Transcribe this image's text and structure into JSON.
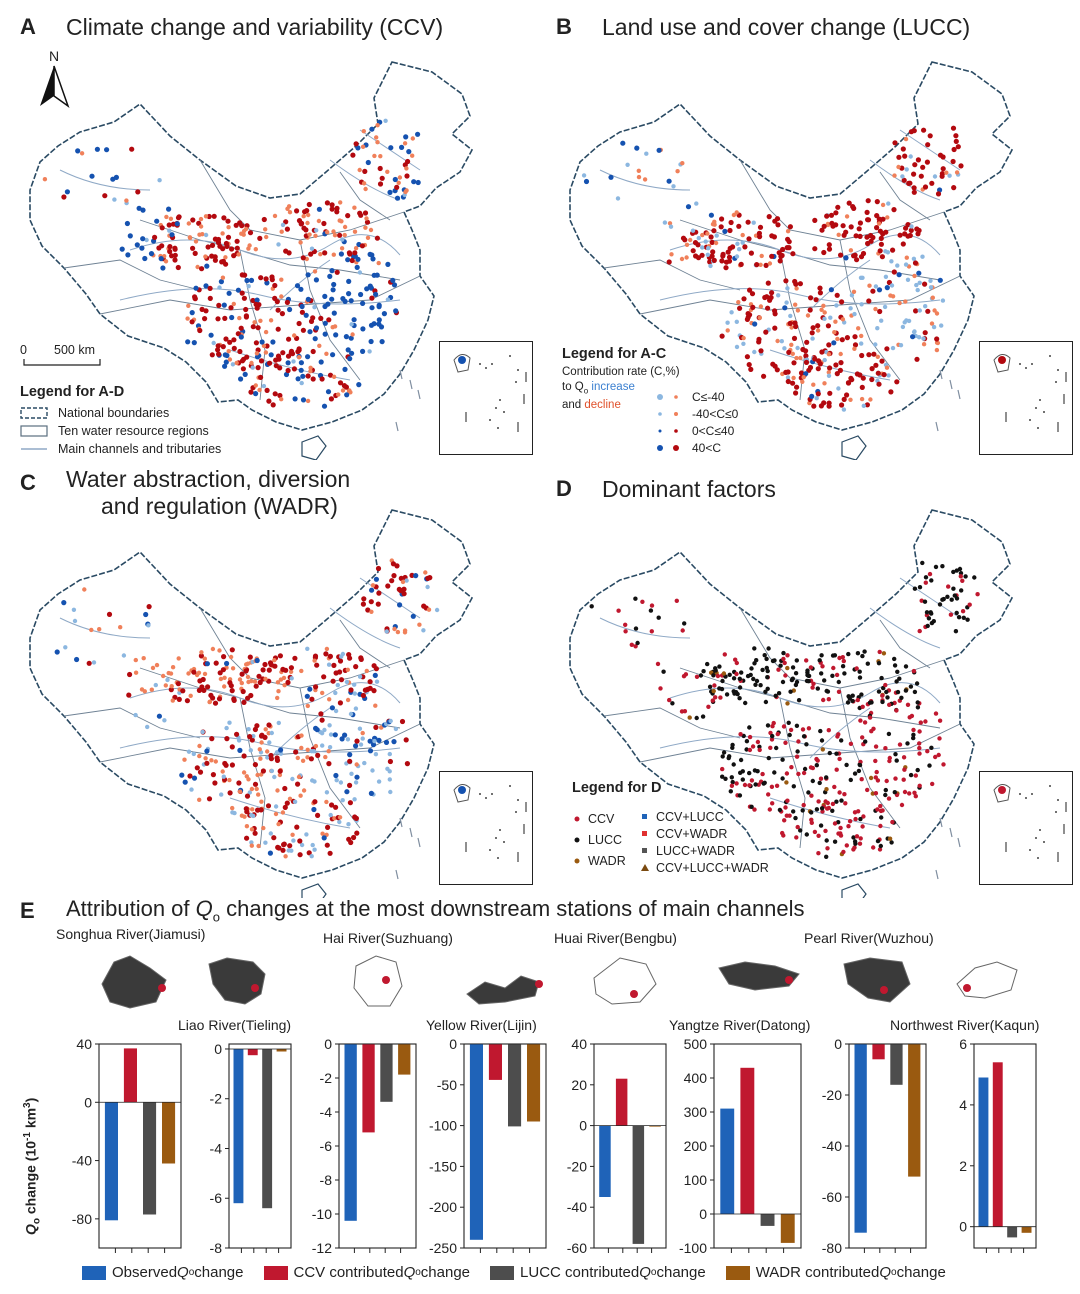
{
  "panels": {
    "A": {
      "letter": "A",
      "title": "Climate change and variability (CCV)"
    },
    "B": {
      "letter": "B",
      "title": "Land use and cover change (LUCC)"
    },
    "C": {
      "letter": "C",
      "title_line1": "Water abstraction, diversion",
      "title_line2": "and regulation (WADR)"
    },
    "D": {
      "letter": "D",
      "title": "Dominant factors"
    },
    "E": {
      "letter": "E",
      "title_pre": "Attribution of ",
      "title_q": "Q",
      "title_sub": "o",
      "title_post": " changes at the most downstream stations of main channels"
    }
  },
  "north": "N",
  "scale": {
    "zero": "0",
    "dist": "500 km"
  },
  "legend_AD": {
    "title": "Legend for A-D",
    "items": [
      "National boundaries",
      "Ten water resource regions",
      "Main channels and tributaries"
    ]
  },
  "legend_AC": {
    "title": "Legend for A-C",
    "line1": "Contribution rate (C,%)",
    "line2_pre": "to Q",
    "line2_sub": "o",
    "line2_inc": " increase",
    "line3_pre": "and ",
    "line3_dec": "decline",
    "items": [
      "C≤-40",
      "-40<C≤0",
      "0<C≤40",
      "40<C"
    ]
  },
  "legend_D": {
    "title": "Legend for D",
    "left": [
      "CCV",
      "LUCC",
      "WADR"
    ],
    "right": [
      "CCV+LUCC",
      "CCV+WADR",
      "LUCC+WADR",
      "CCV+LUCC+WADR"
    ]
  },
  "colors": {
    "observed": "#1f63b8",
    "ccv": "#c0182f",
    "lucc": "#4d4d4d",
    "wadr": "#9a5a10",
    "inc_strong": "#1552b0",
    "inc_weak": "#8cb7e0",
    "dec_weak": "#f0805a",
    "dec_strong": "#b3090f",
    "border": "#2a4a63",
    "river": "#8fa9c6"
  },
  "y_axis_label_pre": "Q",
  "y_axis_label_sub": "o",
  "y_axis_label_post": " change (10",
  "y_axis_label_exp": "-1",
  "y_axis_label_end": " km",
  "y_axis_label_exp2": "3",
  "y_axis_label_close": ")",
  "legend_E": [
    {
      "pre": "Observed ",
      "post": " change"
    },
    {
      "pre": "CCV contributed ",
      "post": " change"
    },
    {
      "pre": "LUCC contributed ",
      "post": " change"
    },
    {
      "pre": "WADR contributed ",
      "post": " change"
    }
  ],
  "chart_data": [
    {
      "type": "bar",
      "title": "Songhua River(Jiamusi)",
      "categories": [
        "Observed",
        "CCV",
        "LUCC",
        "WADR"
      ],
      "values": [
        -81,
        37,
        -77,
        -42
      ],
      "ylim": [
        -100,
        40
      ],
      "ticks": [
        40,
        0,
        -40,
        -80
      ]
    },
    {
      "type": "bar",
      "title": "Liao River(Tieling)",
      "categories": [
        "Observed",
        "CCV",
        "LUCC",
        "WADR"
      ],
      "values": [
        -6.2,
        -0.25,
        -6.4,
        -0.1
      ],
      "ylim": [
        -8,
        0.2
      ],
      "ticks": [
        0,
        -2,
        -4,
        -6,
        -8
      ]
    },
    {
      "type": "bar",
      "title": "Hai River(Suzhuang)",
      "categories": [
        "Observed",
        "CCV",
        "LUCC",
        "WADR"
      ],
      "values": [
        -10.4,
        -5.2,
        -3.4,
        -1.8
      ],
      "ylim": [
        -12,
        0
      ],
      "ticks": [
        0,
        -2,
        -4,
        -6,
        -8,
        -10,
        -12
      ]
    },
    {
      "type": "bar",
      "title": "Yellow River(Lijin)",
      "categories": [
        "Observed",
        "CCV",
        "LUCC",
        "WADR"
      ],
      "values": [
        -240,
        -44,
        -101,
        -95
      ],
      "ylim": [
        -250,
        0
      ],
      "ticks": [
        0,
        -50,
        -100,
        -150,
        -200,
        -250
      ]
    },
    {
      "type": "bar",
      "title": "Huai River(Bengbu)",
      "categories": [
        "Observed",
        "CCV",
        "LUCC",
        "WADR"
      ],
      "values": [
        -35,
        23,
        -58,
        -0.5
      ],
      "ylim": [
        -60,
        40
      ],
      "ticks": [
        40,
        20,
        0,
        -20,
        -40,
        -60
      ]
    },
    {
      "type": "bar",
      "title": "Yangtze River(Datong)",
      "categories": [
        "Observed",
        "CCV",
        "LUCC",
        "WADR"
      ],
      "values": [
        310,
        430,
        -35,
        -85
      ],
      "ylim": [
        -100,
        500
      ],
      "ticks": [
        500,
        400,
        300,
        200,
        100,
        0,
        -100
      ]
    },
    {
      "type": "bar",
      "title": "Pearl River(Wuzhou)",
      "categories": [
        "Observed",
        "CCV",
        "LUCC",
        "WADR"
      ],
      "values": [
        -74,
        -6,
        -16,
        -52
      ],
      "ylim": [
        -80,
        0
      ],
      "ticks": [
        0,
        -20,
        -40,
        -60,
        -80
      ]
    },
    {
      "type": "bar",
      "title": "Northwest River(Kaqun)",
      "categories": [
        "Observed",
        "CCV",
        "LUCC",
        "WADR"
      ],
      "values": [
        4.9,
        5.4,
        -0.35,
        -0.2
      ],
      "ylim": [
        -0.7,
        6
      ],
      "ticks": [
        6,
        4,
        2,
        0
      ]
    }
  ]
}
